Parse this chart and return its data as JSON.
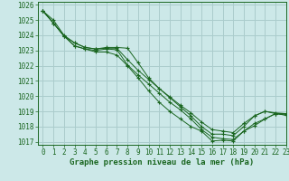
{
  "title": "Graphe pression niveau de la mer (hPa)",
  "background_color": "#cce8e8",
  "grid_color": "#aacccc",
  "line_color": "#1a6620",
  "marker_color": "#1a6620",
  "xlim": [
    -0.5,
    23
  ],
  "ylim": [
    1016.8,
    1026.2
  ],
  "xticks": [
    0,
    1,
    2,
    3,
    4,
    5,
    6,
    7,
    8,
    9,
    10,
    11,
    12,
    13,
    14,
    15,
    16,
    17,
    18,
    19,
    20,
    21,
    22,
    23
  ],
  "yticks": [
    1017,
    1018,
    1019,
    1020,
    1021,
    1022,
    1023,
    1024,
    1025,
    1026
  ],
  "series": [
    [
      1025.6,
      1025.0,
      1024.0,
      1023.5,
      1023.2,
      1023.1,
      1023.2,
      1023.2,
      1023.15,
      1022.2,
      1021.2,
      1020.5,
      1019.9,
      1019.3,
      1018.7,
      1018.0,
      1017.5,
      1017.5,
      1017.4,
      1018.0,
      1018.7,
      1019.0,
      1018.85,
      1018.85
    ],
    [
      1025.6,
      1024.8,
      1023.95,
      1023.5,
      1023.2,
      1023.1,
      1023.15,
      1023.15,
      1022.4,
      1021.7,
      1021.1,
      1020.5,
      1019.95,
      1019.4,
      1018.9,
      1018.3,
      1017.8,
      1017.7,
      1017.6,
      1018.2,
      1018.7,
      1019.0,
      1018.9,
      1018.85
    ],
    [
      1025.6,
      1024.8,
      1023.95,
      1023.3,
      1023.1,
      1023.0,
      1023.1,
      1023.05,
      1022.05,
      1021.4,
      1020.8,
      1020.2,
      1019.6,
      1019.1,
      1018.5,
      1017.8,
      1017.3,
      1017.2,
      1017.15,
      1017.7,
      1018.2,
      1018.5,
      1018.85,
      1018.75
    ],
    [
      1025.6,
      1024.8,
      1023.95,
      1023.3,
      1023.1,
      1022.9,
      1022.9,
      1022.7,
      1022.0,
      1021.2,
      1020.35,
      1019.6,
      1019.0,
      1018.5,
      1018.0,
      1017.7,
      1017.05,
      1017.1,
      1017.05,
      1017.7,
      1018.05,
      1018.5,
      1018.85,
      1018.75
    ]
  ],
  "tick_fontsize": 5.5,
  "title_fontsize": 6.5
}
